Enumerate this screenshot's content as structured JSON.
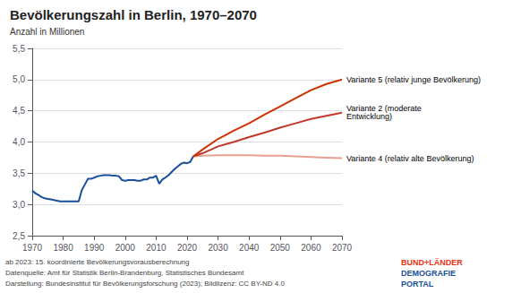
{
  "chart_data": {
    "type": "line",
    "title": "Bevölkerungszahl in Berlin, 1970–2070",
    "ylabel": "Anzahl in Millionen",
    "xlim": [
      1970,
      2070
    ],
    "ylim": [
      2.5,
      5.5
    ],
    "xticks": [
      1970,
      1980,
      1990,
      2000,
      2010,
      2020,
      2030,
      2040,
      2050,
      2060,
      2070
    ],
    "yticks": [
      {
        "value": 2.5,
        "label": "2,5"
      },
      {
        "value": 3.0,
        "label": "3,0"
      },
      {
        "value": 3.5,
        "label": "3,5"
      },
      {
        "value": 4.0,
        "label": "4,0"
      },
      {
        "value": 4.5,
        "label": "4,5"
      },
      {
        "value": 5.0,
        "label": "5,0"
      },
      {
        "value": 5.5,
        "label": "5,5"
      }
    ],
    "grid": true,
    "series": [
      {
        "color": "#1a4f9c",
        "x": [
          1970,
          1971,
          1972,
          1973,
          1974,
          1975,
          1976,
          1977,
          1978,
          1979,
          1980,
          1981,
          1982,
          1983,
          1984,
          1985,
          1986,
          1987,
          1988,
          1989,
          1990,
          1991,
          1992,
          1993,
          1994,
          1995,
          1996,
          1997,
          1998,
          1999,
          2000,
          2001,
          2002,
          2003,
          2004,
          2005,
          2006,
          2007,
          2008,
          2009,
          2010,
          2011,
          2012,
          2013,
          2014,
          2015,
          2016,
          2017,
          2018,
          2019,
          2020,
          2021,
          2022
        ],
        "values": [
          3.22,
          3.18,
          3.15,
          3.12,
          3.1,
          3.09,
          3.08,
          3.07,
          3.06,
          3.05,
          3.05,
          3.05,
          3.05,
          3.05,
          3.05,
          3.05,
          3.23,
          3.32,
          3.41,
          3.41,
          3.43,
          3.45,
          3.46,
          3.47,
          3.47,
          3.47,
          3.46,
          3.46,
          3.45,
          3.39,
          3.38,
          3.39,
          3.39,
          3.39,
          3.38,
          3.38,
          3.4,
          3.4,
          3.43,
          3.43,
          3.46,
          3.33,
          3.4,
          3.43,
          3.47,
          3.52,
          3.57,
          3.61,
          3.65,
          3.67,
          3.66,
          3.68,
          3.77
        ]
      },
      {
        "name": "Variante 4 (relativ alte Bevölkerung)",
        "color": "#e8a090",
        "x": [
          2022,
          2025,
          2030,
          2035,
          2040,
          2045,
          2050,
          2055,
          2060,
          2065,
          2070
        ],
        "values": [
          3.77,
          3.78,
          3.79,
          3.79,
          3.79,
          3.78,
          3.78,
          3.77,
          3.76,
          3.75,
          3.74
        ]
      },
      {
        "name": "Variante 2 (moderate\nEntwicklung)",
        "color": "#c0392b",
        "x": [
          2022,
          2025,
          2030,
          2035,
          2040,
          2045,
          2050,
          2055,
          2060,
          2065,
          2070
        ],
        "values": [
          3.77,
          3.82,
          3.93,
          4.0,
          4.08,
          4.15,
          4.23,
          4.3,
          4.37,
          4.42,
          4.47
        ]
      },
      {
        "name": "Variante 5 (relativ junge Bevölkerung)",
        "color": "#cc3300",
        "x": [
          2022,
          2025,
          2030,
          2035,
          2040,
          2045,
          2050,
          2055,
          2060,
          2065,
          2070
        ],
        "values": [
          3.77,
          3.88,
          4.05,
          4.18,
          4.3,
          4.44,
          4.57,
          4.7,
          4.83,
          4.93,
          5.0
        ]
      }
    ],
    "annotations": [
      {
        "text": "ab 2023: 15. koordinierte Bevölkerungsvorausberechnung"
      },
      {
        "text": "Datenquelle: Amt für Statistik Berlin-Brandenburg, Statistisches Bundesamt"
      },
      {
        "text": "Darstellung: Bundesinstitut für Bevölkerungsforschung (2023); Bildlizenz: CC BY-ND 4.0"
      },
      {
        "text": "BUND+LÄNDER",
        "color": "#e63312"
      },
      {
        "text": "DEMOGRAFIE",
        "color": "#1a4f9c"
      },
      {
        "text": "PORTAL",
        "color": "#1a4f9c"
      }
    ]
  }
}
